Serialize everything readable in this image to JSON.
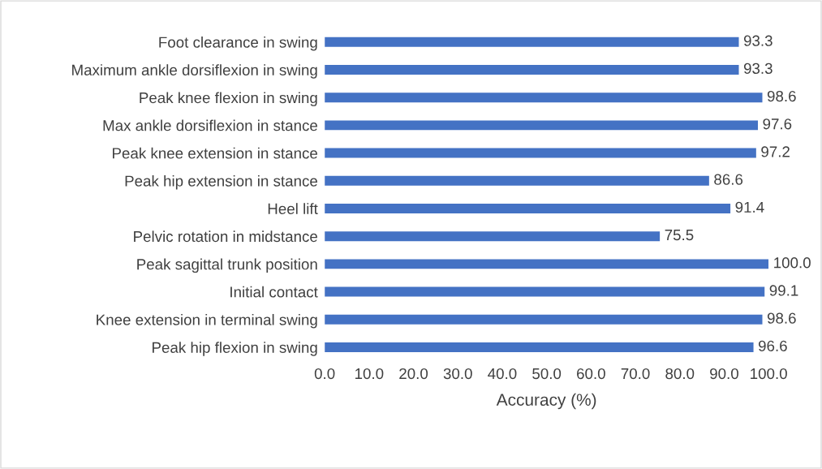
{
  "chart_data": {
    "type": "bar",
    "orientation": "horizontal",
    "xlabel": "Accuracy (%)",
    "categories": [
      "Foot clearance in swing",
      "Maximum ankle dorsiflexion in swing",
      "Peak knee flexion in swing",
      "Max ankle dorsiflexion in stance",
      "Peak knee extension in stance",
      "Peak hip extension in stance",
      "Heel lift",
      "Pelvic rotation in midstance",
      "Peak sagittal trunk position",
      "Initial contact",
      "Knee extension in terminal swing",
      "Peak hip flexion in swing"
    ],
    "values": [
      93.3,
      93.3,
      98.6,
      97.6,
      97.2,
      86.6,
      91.4,
      75.5,
      100.0,
      99.1,
      98.6,
      96.6
    ],
    "value_labels": [
      "93.3",
      "93.3",
      "98.6",
      "97.6",
      "97.2",
      "86.6",
      "91.4",
      "75.5",
      "100.0",
      "99.1",
      "98.6",
      "96.6"
    ],
    "color": "#4472c4",
    "xlim": [
      0,
      100
    ],
    "xticks": [
      {
        "value": 0,
        "label": "0.0"
      },
      {
        "value": 10,
        "label": "10.0"
      },
      {
        "value": 20,
        "label": "20.0"
      },
      {
        "value": 30,
        "label": "30.0"
      },
      {
        "value": 40,
        "label": "40.0"
      },
      {
        "value": 50,
        "label": "50.0"
      },
      {
        "value": 60,
        "label": "60.0"
      },
      {
        "value": 70,
        "label": "70.0"
      },
      {
        "value": 80,
        "label": "80.0"
      },
      {
        "value": 90,
        "label": "90.0"
      },
      {
        "value": 100,
        "label": "100.0"
      }
    ],
    "grid": false,
    "legend": false
  }
}
